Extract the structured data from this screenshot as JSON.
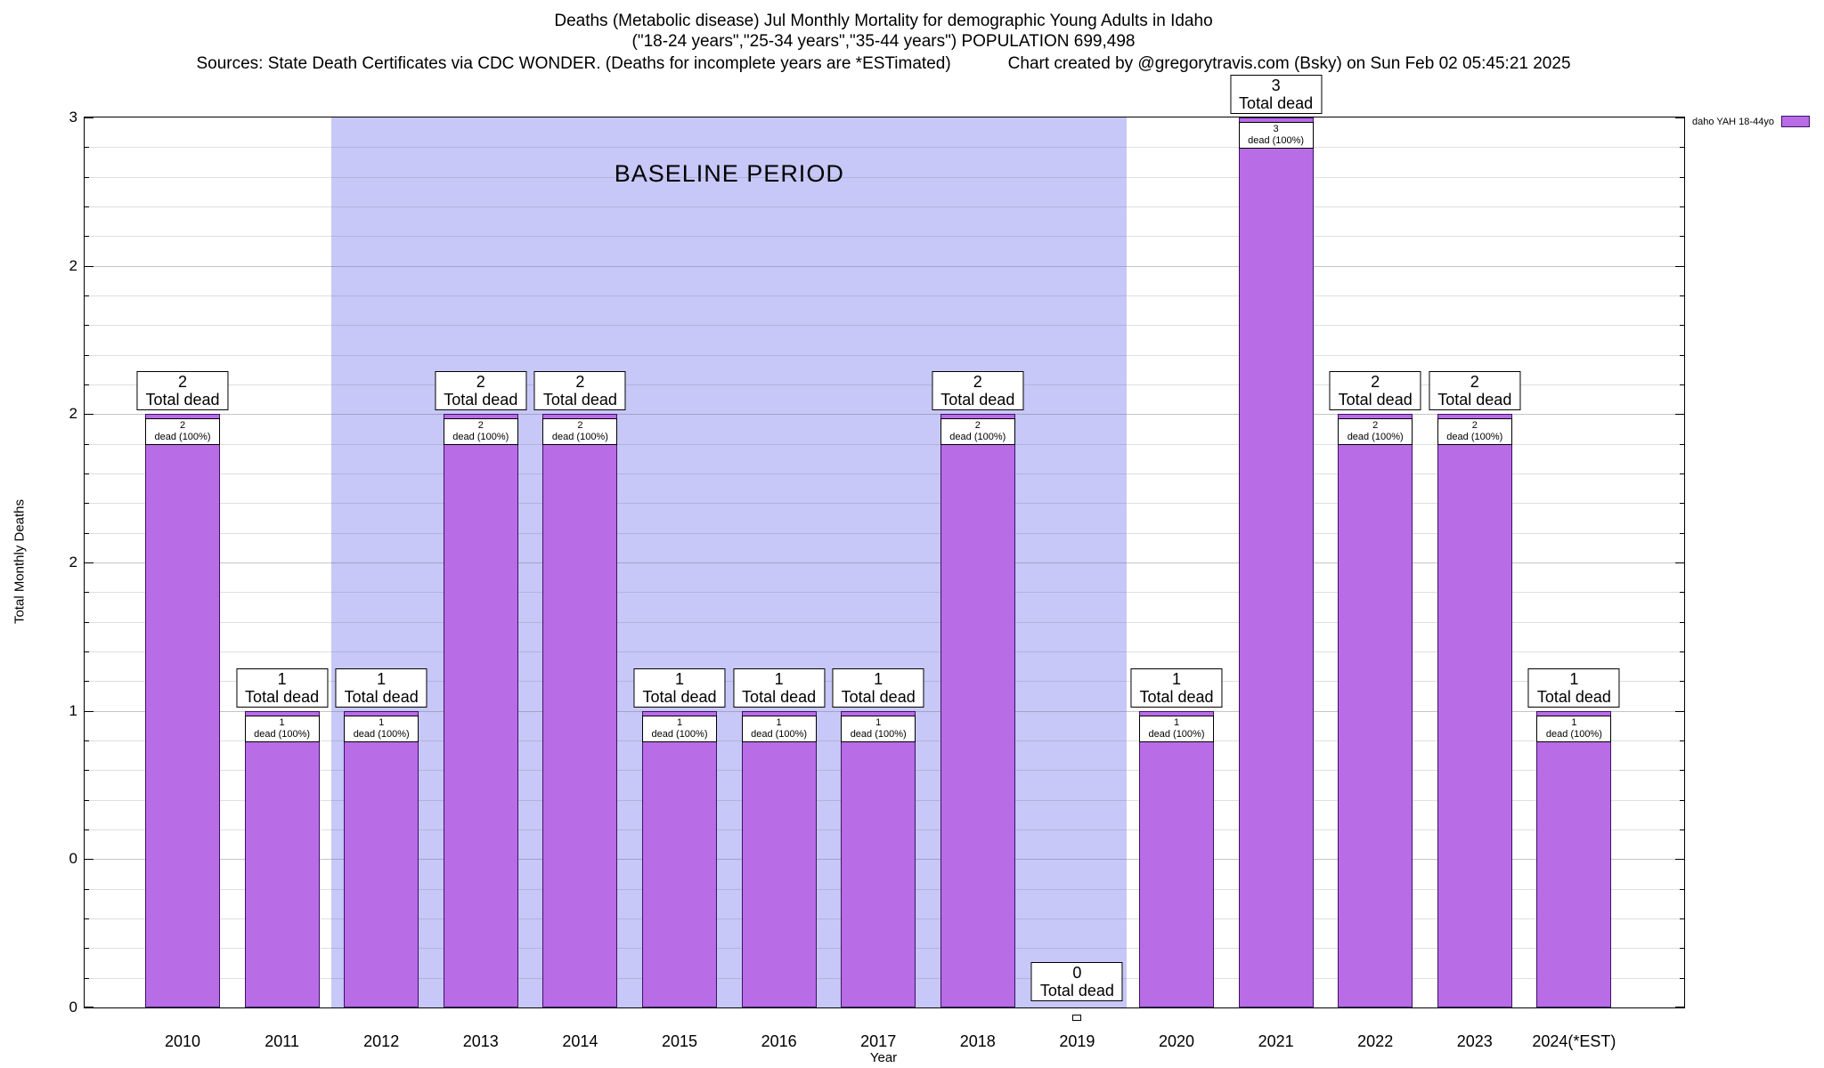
{
  "title": {
    "line1": "Deaths (Metabolic disease) Jul Monthly Mortality for demographic Young Adults in Idaho",
    "line2": "(\"18-24 years\",\"25-34 years\",\"35-44 years\") POPULATION 699,498",
    "sources": "Sources: State Death Certificates via CDC WONDER. (Deaths for incomplete years are *ESTimated)",
    "credit": "Chart created by @gregorytravis.com (Bsky) on Sun Feb 02 05:45:21 2025"
  },
  "legend": {
    "label": "daho YAH 18-44yo"
  },
  "chart_data": {
    "type": "bar",
    "title": "Deaths (Metabolic disease) Jul Monthly Mortality for demographic Young Adults in Idaho",
    "xlabel": "Year",
    "ylabel": "Total Monthly Deaths",
    "ylim": [
      0,
      3
    ],
    "grid": "horizontal minor gridlines every 0.1",
    "legend_position": "top-right outside plot",
    "categories": [
      "2010",
      "2011",
      "2012",
      "2013",
      "2014",
      "2015",
      "2016",
      "2017",
      "2018",
      "2019",
      "2020",
      "2021",
      "2022",
      "2023",
      "2024(*EST)"
    ],
    "values": [
      2,
      1,
      1,
      2,
      2,
      1,
      1,
      1,
      2,
      0,
      1,
      3,
      2,
      2,
      1
    ],
    "yticks": [
      {
        "value": 0,
        "label": "0"
      },
      {
        "value": 0.5,
        "label": "0"
      },
      {
        "value": 1,
        "label": "1"
      },
      {
        "value": 1.5,
        "label": "2"
      },
      {
        "value": 2,
        "label": "2"
      },
      {
        "value": 2.5,
        "label": "2"
      },
      {
        "value": 3,
        "label": "3"
      }
    ],
    "bars": [
      {
        "year": "2010",
        "value": 2,
        "total_box": [
          "2",
          "Total dead"
        ],
        "bar_box": [
          "2",
          "dead (100%)"
        ]
      },
      {
        "year": "2011",
        "value": 1,
        "total_box": [
          "1",
          "Total dead"
        ],
        "bar_box": [
          "1",
          "dead (100%)"
        ]
      },
      {
        "year": "2012",
        "value": 1,
        "total_box": [
          "1",
          "Total dead"
        ],
        "bar_box": [
          "1",
          "dead (100%)"
        ]
      },
      {
        "year": "2013",
        "value": 2,
        "total_box": [
          "2",
          "Total dead"
        ],
        "bar_box": [
          "2",
          "dead (100%)"
        ]
      },
      {
        "year": "2014",
        "value": 2,
        "total_box": [
          "2",
          "Total dead"
        ],
        "bar_box": [
          "2",
          "dead (100%)"
        ]
      },
      {
        "year": "2015",
        "value": 1,
        "total_box": [
          "1",
          "Total dead"
        ],
        "bar_box": [
          "1",
          "dead (100%)"
        ]
      },
      {
        "year": "2016",
        "value": 1,
        "total_box": [
          "1",
          "Total dead"
        ],
        "bar_box": [
          "1",
          "dead (100%)"
        ]
      },
      {
        "year": "2017",
        "value": 1,
        "total_box": [
          "1",
          "Total dead"
        ],
        "bar_box": [
          "1",
          "dead (100%)"
        ]
      },
      {
        "year": "2018",
        "value": 2,
        "total_box": [
          "2",
          "Total dead"
        ],
        "bar_box": [
          "2",
          "dead (100%)"
        ]
      },
      {
        "year": "2019",
        "value": 0,
        "total_box": [
          "0",
          "Total dead"
        ],
        "bar_box": null
      },
      {
        "year": "2020",
        "value": 1,
        "total_box": [
          "1",
          "Total dead"
        ],
        "bar_box": [
          "1",
          "dead (100%)"
        ]
      },
      {
        "year": "2021",
        "value": 3,
        "total_box": [
          "3",
          "Total dead"
        ],
        "bar_box": [
          "3",
          "dead (100%)"
        ]
      },
      {
        "year": "2022",
        "value": 2,
        "total_box": [
          "2",
          "Total dead"
        ],
        "bar_box": [
          "2",
          "dead (100%)"
        ]
      },
      {
        "year": "2023",
        "value": 2,
        "total_box": [
          "2",
          "Total dead"
        ],
        "bar_box": [
          "2",
          "dead (100%)"
        ]
      },
      {
        "year": "2024(*EST)",
        "value": 1,
        "total_box": [
          "1",
          "Total dead"
        ],
        "bar_box": [
          "1",
          "dead (100%)"
        ]
      }
    ],
    "baseline_band": {
      "label": "BASELINE PERIOD",
      "from_year": "2012",
      "to_year": "2019",
      "from_index": 2,
      "to_index": 9,
      "color": "#c7c7f8"
    },
    "colors": {
      "bar_fill": "#b86ce6",
      "bar_border": "#3d1166",
      "band": "#c7c7f8"
    }
  }
}
